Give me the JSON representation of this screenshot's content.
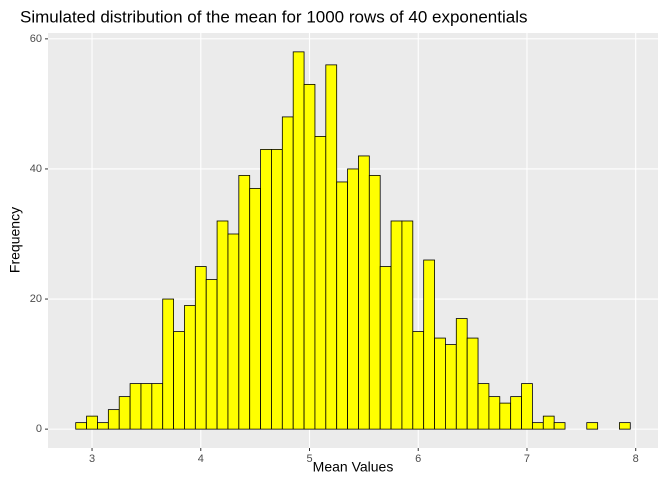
{
  "chart_data": {
    "type": "histogram",
    "title": "Simulated distribution of the mean for 1000 rows of 40 exponentials",
    "x_label": "Mean Values",
    "y_label": "Frequency",
    "bins": [
      2.85,
      2.95,
      3.05,
      3.15,
      3.25,
      3.35,
      3.45,
      3.55,
      3.65,
      3.75,
      3.85,
      3.95,
      4.05,
      4.15,
      4.25,
      4.35,
      4.45,
      4.55,
      4.65,
      4.75,
      4.85,
      4.95,
      5.05,
      5.15,
      5.25,
      5.35,
      5.45,
      5.55,
      5.65,
      5.75,
      5.85,
      5.95,
      6.05,
      6.15,
      6.25,
      6.35,
      6.45,
      6.55,
      6.65,
      6.75,
      6.85,
      6.95,
      7.05,
      7.15,
      7.25,
      7.35,
      7.45,
      7.55,
      7.65,
      7.75,
      7.85,
      7.95
    ],
    "values": [
      1,
      2,
      1,
      3,
      5,
      7,
      7,
      7,
      20,
      15,
      19,
      25,
      23,
      32,
      30,
      39,
      37,
      43,
      43,
      48,
      58,
      53,
      45,
      56,
      38,
      40,
      42,
      39,
      25,
      32,
      32,
      15,
      26,
      14,
      13,
      17,
      14,
      7,
      5,
      4,
      5,
      7,
      1,
      2,
      1,
      0,
      0,
      1,
      0,
      0,
      1
    ],
    "color": "#ffff00",
    "edge_color": "#000000",
    "xlim": [
      2.595,
      8.205
    ],
    "ylim": [
      -2.9,
      60.9
    ],
    "xticks": [
      3,
      4,
      5,
      6,
      7,
      8
    ],
    "yticks": [
      0,
      20,
      40,
      60
    ],
    "grid": true
  }
}
